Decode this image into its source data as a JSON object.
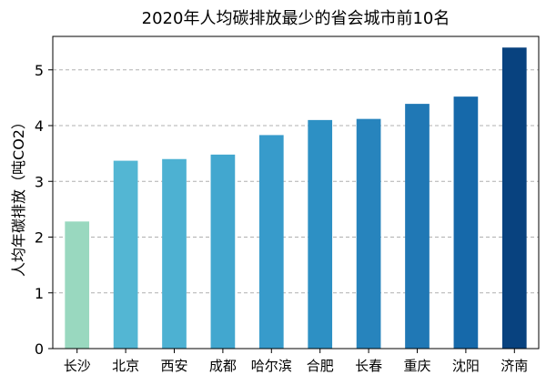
{
  "chart_data": {
    "type": "bar",
    "title": "2020年人均碳排放最少的省会城市前10名",
    "xlabel": "",
    "ylabel": "人均年碳排放（吨CO2）",
    "categories": [
      "长沙",
      "北京",
      "西安",
      "成都",
      "哈尔滨",
      "合肥",
      "长春",
      "重庆",
      "沈阳",
      "济南"
    ],
    "values": [
      2.28,
      3.37,
      3.4,
      3.48,
      3.83,
      4.1,
      4.12,
      4.39,
      4.52,
      5.4
    ],
    "ylim": [
      0,
      5.6
    ],
    "yticks": [
      0,
      1,
      2,
      3,
      4,
      5
    ],
    "grid": "horizontal-dashed",
    "colors": [
      "#99d8bf",
      "#53b6d3",
      "#4db1d2",
      "#42a7cf",
      "#379bcb",
      "#2d90c4",
      "#2784bd",
      "#2078b5",
      "#1669aa",
      "#08427f"
    ]
  }
}
